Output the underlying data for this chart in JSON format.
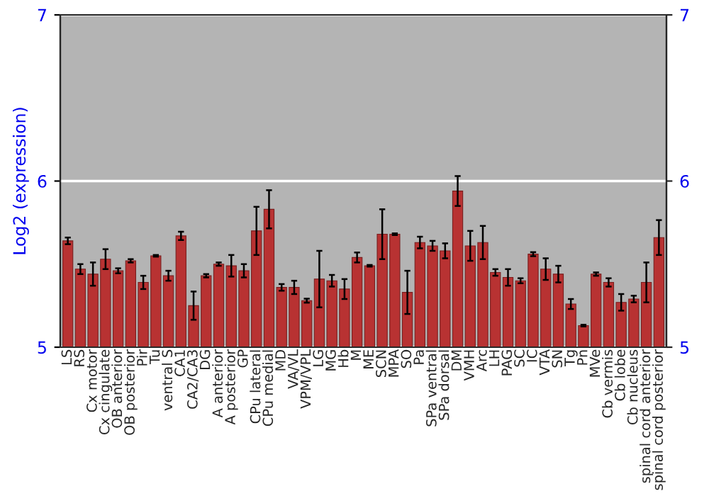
{
  "chart_data": {
    "type": "bar",
    "ylabel": "Log2 (expression)",
    "categories": [
      "LS",
      "RS",
      "Cx motor",
      "Cx cingulate",
      "OB anterior",
      "OB posterior",
      "Pir",
      "Tu",
      "ventral S",
      "CA1",
      "CA2/CA3",
      "DG",
      "A anterior",
      "A posterior",
      "GP",
      "CPu lateral",
      "CPu medial",
      "MD",
      "VA/VL",
      "VPM/VPL",
      "LG",
      "MG",
      "Hb",
      "M",
      "ME",
      "SCN",
      "MPA",
      "SO",
      "Pa",
      "SPa ventral",
      "SPa dorsal",
      "DM",
      "VMH",
      "Arc",
      "LH",
      "PAG",
      "SC",
      "IC",
      "VTA",
      "SN",
      "Tg",
      "Pn",
      "MVe",
      "Cb vermis",
      "Cb lobe",
      "Cb nucleus",
      "spinal cord anterior",
      "spinal cord posterior"
    ],
    "values": [
      5.64,
      5.47,
      5.44,
      5.53,
      5.46,
      5.52,
      5.39,
      5.55,
      5.43,
      5.67,
      5.25,
      5.43,
      5.5,
      5.49,
      5.46,
      5.7,
      5.83,
      5.36,
      5.36,
      5.28,
      5.41,
      5.4,
      5.35,
      5.54,
      5.49,
      5.68,
      5.68,
      5.33,
      5.63,
      5.61,
      5.58,
      5.94,
      5.61,
      5.63,
      5.45,
      5.42,
      5.4,
      5.56,
      5.47,
      5.44,
      5.26,
      5.13,
      5.44,
      5.39,
      5.27,
      5.29,
      5.39,
      5.66
    ],
    "errors": [
      0.02,
      0.03,
      0.07,
      0.06,
      0.015,
      0.01,
      0.04,
      0.005,
      0.03,
      0.025,
      0.085,
      0.01,
      0.01,
      0.065,
      0.04,
      0.145,
      0.115,
      0.02,
      0.04,
      0.012,
      0.17,
      0.035,
      0.06,
      0.03,
      0.005,
      0.15,
      0.005,
      0.13,
      0.035,
      0.03,
      0.045,
      0.09,
      0.09,
      0.1,
      0.02,
      0.05,
      0.015,
      0.012,
      0.065,
      0.05,
      0.03,
      0.005,
      0.01,
      0.025,
      0.05,
      0.02,
      0.12,
      0.105
    ],
    "color": "#b83232",
    "ylim": [
      5,
      7
    ],
    "yticks": [
      5,
      6,
      7
    ],
    "y2lim": [
      5,
      7
    ],
    "y2ticks": [
      5,
      6,
      7
    ],
    "grid": "y",
    "legend": false
  }
}
